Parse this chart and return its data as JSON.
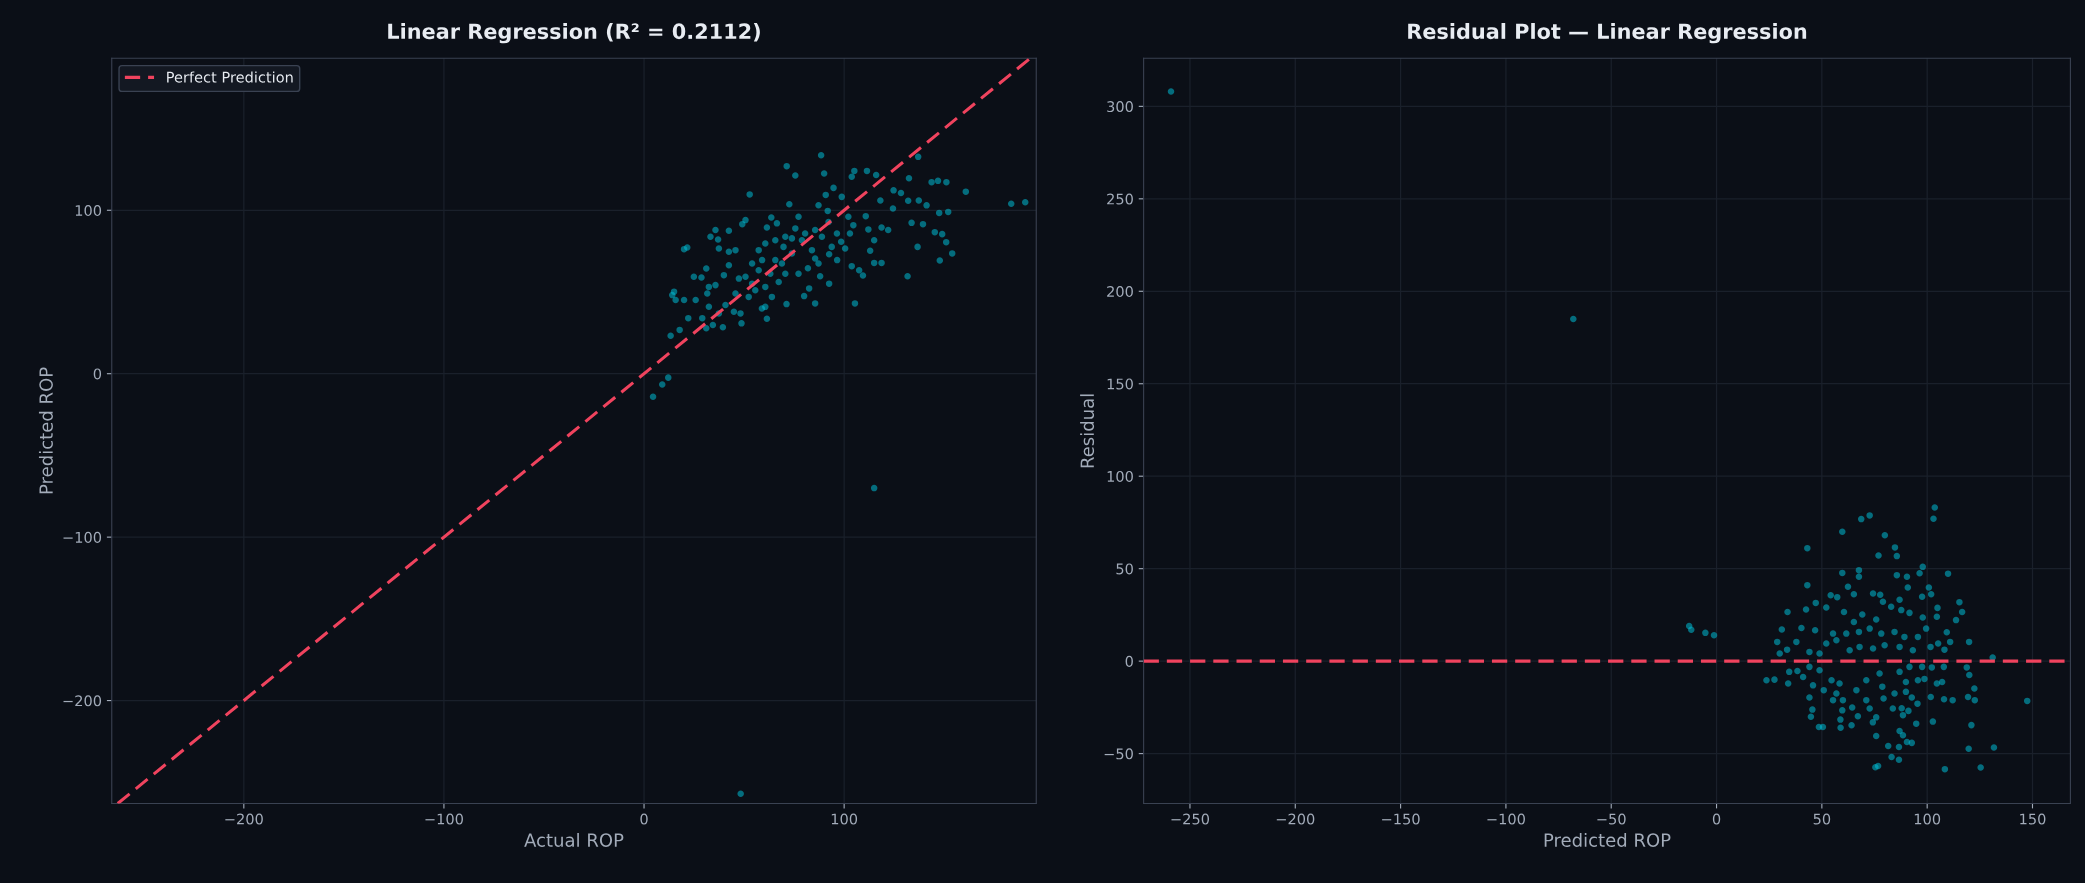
{
  "chart_data": [
    {
      "type": "scatter",
      "title": "Linear Regression (R² = 0.2112)",
      "xlabel": "Actual ROP",
      "ylabel": "Predicted ROP",
      "xlim": [
        -266,
        196
      ],
      "ylim": [
        -263,
        193
      ],
      "xticks": [
        {
          "value": -200,
          "label": "−200"
        },
        {
          "value": -100,
          "label": "−100"
        },
        0,
        100
      ],
      "yticks": [
        {
          "value": -200,
          "label": "−200"
        },
        {
          "value": -100,
          "label": "−100"
        },
        0,
        100
      ],
      "grid": true,
      "legend": "top left",
      "series": [
        {
          "type": "scatter",
          "marker": "circle",
          "color": "#00bcd4",
          "x": [
            88.5,
            71.3,
            75.6,
            90,
            52.8,
            72.6,
            105.1,
            111.4,
            116,
            137,
            132.4,
            143.7,
            146.9,
            151.1,
            160.8,
            183.5,
            190.5,
            124.7,
            128.4,
            132,
            137.3,
            141.2,
            147.5,
            152,
            133.7,
            139.4,
            145.3,
            149,
            151,
            154,
            147.8,
            136.7,
            131.7,
            118.7,
            115,
            113,
            115,
            112.1,
            110.8,
            118.7,
            122,
            124.4,
            118.1,
            103.8,
            98.8,
            94.7,
            90.8,
            87.2,
            91.8,
            102.1,
            104.6,
            102.9,
            98.5,
            100.5,
            96.5,
            103.8,
            107.5,
            109.4,
            105.4,
            92.5,
            88,
            92.5,
            85.5,
            82.5,
            80,
            71.2,
            81.9,
            87.2,
            77.2,
            83.9,
            80.5,
            85.5,
            73.9,
            69.7,
            65.6,
            70.6,
            67.3,
            63.9,
            60.6,
            61.4,
            58.9,
            55.6,
            52.3,
            48.2,
            48.7,
            44.9,
            40.7,
            37.4,
            34.4,
            31.1,
            39.4,
            29.1,
            32.4,
            31.6,
            25.8,
            20,
            15,
            15.8,
            22.1,
            17.8,
            13.3,
            12.1,
            9.1,
            4.5,
            24.9,
            28.7,
            31.1,
            35.7,
            39.9,
            42.4,
            47.4,
            50.7,
            54,
            57.3,
            60.6,
            65.6,
            70.6,
            59,
            45.7,
            42.4,
            37.4,
            37,
            33.2,
            35.7,
            42.4,
            49.1,
            50.7,
            61.4,
            63.6,
            66.4,
            20,
            21.6,
            77.2,
            75.6,
            78.9,
            88.9,
            92.2,
            96.4,
            93.8,
            85.5,
            73.9,
            68.9,
            63.1,
            57.3,
            54,
            60.6,
            45.7,
            32.4,
            14.1,
            48.3,
            115
          ],
          "values": [
            133.7,
            127,
            121.3,
            122.5,
            109.7,
            103.7,
            124.1,
            124.1,
            121.6,
            132.7,
            119.6,
            117.2,
            118,
            117.2,
            111.4,
            104,
            104.9,
            112.2,
            110.6,
            105.8,
            106,
            103,
            98.4,
            99,
            92.3,
            91.5,
            86.6,
            85.4,
            80.5,
            73.6,
            69.3,
            77.6,
            59.6,
            67.8,
            67.8,
            75.2,
            81.7,
            88.3,
            96.4,
            89.5,
            87.9,
            101.1,
            106,
            120.5,
            108.2,
            113.7,
            109.4,
            103.1,
            99.6,
            96,
            90.9,
            85.8,
            80.7,
            76.6,
            69.5,
            65.8,
            63.3,
            60.1,
            43,
            73.1,
            59.6,
            55.1,
            43,
            52.2,
            47.5,
            42.6,
            64.5,
            67.4,
            61.2,
            75.6,
            85.8,
            87.9,
            82.8,
            77.6,
            69.5,
            61.2,
            56.1,
            47,
            40.9,
            33.6,
            39.9,
            51.1,
            47,
            36.9,
            30.8,
            37.9,
            42,
            36.9,
            29.8,
            27.8,
            28.4,
            34,
            41,
            49.1,
            45.1,
            45.1,
            50.2,
            45.1,
            34,
            26.8,
            23.2,
            -2.4,
            -6.6,
            -14.1,
            59.3,
            58.9,
            64.4,
            54.2,
            60.3,
            66.4,
            58.2,
            59.3,
            67.4,
            75.6,
            79.7,
            81.7,
            83.8,
            69.5,
            75.6,
            74.6,
            76.6,
            82.1,
            83.8,
            87.9,
            87.5,
            91.5,
            94,
            89.5,
            95.6,
            92,
            76.2,
            77.2,
            96,
            88.9,
            81.7,
            83.8,
            92.8,
            85.8,
            77.6,
            70.5,
            73.6,
            67.4,
            61.2,
            63.3,
            55.1,
            53.1,
            49.1,
            53.1,
            48.1,
            -257,
            -70
          ]
        },
        {
          "type": "line",
          "name": "Perfect Prediction",
          "color": "#f0435e",
          "line_style": "dashed",
          "x": [
            -263,
            193
          ],
          "values": [
            -263,
            193
          ]
        }
      ]
    },
    {
      "type": "scatter",
      "title": "Residual Plot — Linear Regression",
      "xlabel": "Predicted ROP",
      "ylabel": "Residual",
      "xlim": [
        -272,
        168
      ],
      "ylim": [
        -77,
        326
      ],
      "xticks": [
        {
          "value": -250,
          "label": "−250"
        },
        {
          "value": -200,
          "label": "−200"
        },
        {
          "value": -150,
          "label": "−150"
        },
        {
          "value": -100,
          "label": "−100"
        },
        {
          "value": -50,
          "label": "−50"
        },
        0,
        50,
        100,
        150
      ],
      "yticks": [
        {
          "value": -50,
          "label": "−50"
        },
        0,
        50,
        100,
        150,
        200,
        250,
        300
      ],
      "grid": true,
      "ref_lines": [
        {
          "axis": "y",
          "value": 0,
          "color": "#f0435e",
          "line_style": "dashed"
        }
      ],
      "series": [
        {
          "type": "scatter",
          "marker": "circle",
          "color": "#00bcd4",
          "x": [
            103.6,
            103,
            72.7,
            68.7,
            59.7,
            79.9,
            84.7,
            85.6,
            76.9,
            43.1,
            43.1,
            59.7,
            67.6,
            67.6,
            62.4,
            65.2,
            74.3,
            77.7,
            85.6,
            90.4,
            97.9,
            96.4,
            90.8,
            100.8,
            101.9,
            97.6,
            109.9,
            115.3,
            116.6,
            113.7,
            104.9,
            104.6,
            97.9,
            91.6,
            87.7,
            82.9,
            79,
            86.9,
            57.3,
            54.2,
            60.5,
            65.2,
            69.2,
            75.8,
            52.1,
            47.1,
            42.5,
            33.7,
            31,
            40.3,
            46.8,
            55.3,
            61.6,
            67.6,
            72.7,
            78.2,
            84.5,
            89.2,
            95.6,
            99.5,
            109.3,
            110.9,
            105.2,
            108.2,
            119.9,
            101.6,
            93.2,
            86.9,
            79.8,
            74.3,
            67.9,
            63.2,
            56.9,
            52.1,
            48.9,
            44.1,
            37.9,
            33.5,
            28.8,
            30,
            131.1,
            -5.3,
            -1.2,
            -13,
            -12,
            23.7,
            27.5,
            34,
            34.5,
            38.4,
            41.1,
            44.1,
            48.9,
            45.8,
            44.1,
            45.5,
            44.8,
            48.6,
            50.5,
            50.9,
            54.6,
            56.9,
            55.3,
            58.4,
            60,
            59.7,
            58.8,
            58.9,
            64.1,
            64.4,
            67.1,
            66.4,
            71.1,
            71.1,
            72.7,
            77.4,
            78.7,
            79.3,
            75.8,
            74.2,
            75.8,
            75.4,
            76.7,
            81.5,
            83.1,
            86.6,
            86.6,
            86.9,
            88.5,
            90.4,
            92.7,
            88.5,
            91.1,
            87.9,
            83.7,
            84.5,
            89.9,
            92.7,
            95.4,
            94.8,
            95.6,
            98.7,
            89.9,
            86.9,
            91.6,
            97.6,
            102.2,
            107.9,
            104.6,
            107.1,
            101.7,
            102.7,
            108,
            112.1,
            118.8,
            120,
            122.4,
            119.4,
            122.6,
            121,
            119.7,
            131.7,
            125.4,
            108.4,
            147.5,
            -259,
            -68
          ],
          "values": [
            83.1,
            77,
            78.8,
            76.8,
            70,
            68.1,
            61.5,
            56.8,
            57.1,
            61.1,
            41.1,
            47.7,
            49.2,
            45.6,
            40.2,
            36.2,
            36.6,
            35.9,
            46.5,
            45.6,
            51,
            47.5,
            39.8,
            39.8,
            36.2,
            34.8,
            47.3,
            31.9,
            26.6,
            22.2,
            28.8,
            24,
            23.6,
            26.1,
            27.6,
            29.4,
            32.1,
            33.2,
            34.6,
            35.6,
            26.6,
            21.2,
            25.2,
            22.5,
            29,
            31.5,
            27.9,
            26.6,
            17.1,
            17.9,
            16.7,
            14.9,
            14.9,
            15.8,
            17.6,
            14.9,
            15.8,
            13.1,
            13.1,
            17.6,
            15.6,
            10.4,
            9.5,
            6.2,
            10.4,
            7.7,
            5.9,
            7.7,
            8.6,
            6.8,
            7.7,
            5.9,
            11.3,
            9.5,
            4.1,
            5,
            10.4,
            6.2,
            10.4,
            4.1,
            2,
            15.3,
            14,
            19,
            17,
            -10.3,
            -10,
            -12.1,
            -5.8,
            -5.3,
            -8.6,
            -3.1,
            -4.9,
            -13.1,
            -19.7,
            -26.2,
            -30.1,
            -35.6,
            -35.6,
            -15.7,
            -10.3,
            -17.5,
            -21.1,
            -12.1,
            -21.1,
            -26.6,
            -31.6,
            -36,
            -34.7,
            -25.1,
            -29.8,
            -15.7,
            -10.3,
            -21.1,
            -25.6,
            -6.7,
            -13.8,
            -20.2,
            -30.4,
            -33.1,
            -40.5,
            -57.4,
            -56.7,
            -45.9,
            -51.8,
            -53.3,
            -46.4,
            -37.8,
            -40.1,
            -43.7,
            -44.2,
            -29.2,
            -26.9,
            -25.5,
            -25.6,
            -17.5,
            -16.6,
            -19.7,
            -23,
            -33.8,
            -10.3,
            -9.6,
            -11.3,
            -5.8,
            -3.1,
            -3.1,
            -3.4,
            -3.1,
            -12.1,
            -11.3,
            -19.4,
            -32.7,
            -20.6,
            -21.1,
            -3.4,
            -7.5,
            -14.8,
            -19.4,
            -21.1,
            -34.6,
            -47.4,
            -46.7,
            -57.5,
            -58.4,
            -21.5,
            308,
            185
          ]
        }
      ]
    }
  ]
}
